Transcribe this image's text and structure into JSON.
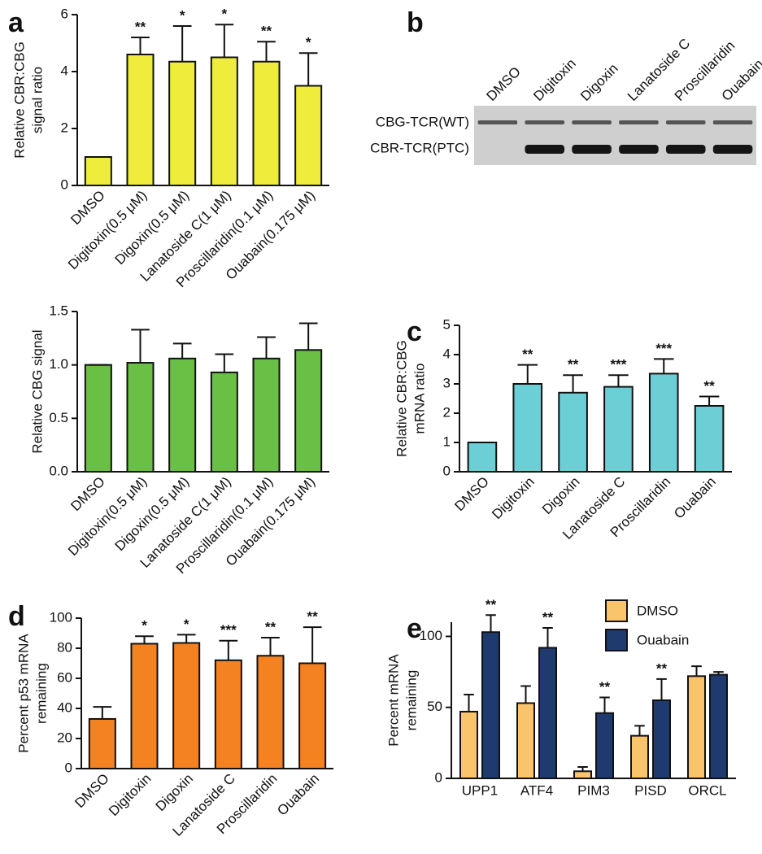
{
  "chart_data": [
    {
      "type": "bar",
      "panel": "a",
      "ylabel": [
        "Relative CBR:CBG",
        "signal ratio"
      ],
      "categories": [
        "DMSO",
        "Digitoxin(0.5 μM)",
        "Digoxin(0.5 μM)",
        "Lanatoside C(1 μM)",
        "Proscillaridin(0.1 μM)",
        "Ouabain(0.175 μM)"
      ],
      "values": [
        1,
        4.6,
        4.35,
        4.5,
        4.35,
        3.5
      ],
      "errors": [
        0,
        0.6,
        1.25,
        1.15,
        0.7,
        1.15
      ],
      "annotations": [
        null,
        "**",
        "*",
        "*",
        "**",
        "*"
      ],
      "color": "#f0ec3c",
      "ylim": [
        0,
        6
      ],
      "yticks": [
        0,
        2,
        4,
        6
      ]
    },
    {
      "type": "bar",
      "ylabel": [
        "Relative CBG signal"
      ],
      "categories": [
        "DMSO",
        "Digitoxin(0.5 μM)",
        "Digoxin(0.5 μM)",
        "Lanatoside C(1 μM)",
        "Proscillaridin(0.1 μM)",
        "Ouabain(0.175 μM)"
      ],
      "values": [
        1.0,
        1.02,
        1.06,
        0.93,
        1.06,
        1.14
      ],
      "errors": [
        0,
        0.31,
        0.14,
        0.17,
        0.2,
        0.25
      ],
      "color": "#6abf45",
      "ylim": [
        0,
        1.5
      ],
      "yticks": [
        {
          "value": 0,
          "label": "0.0"
        },
        {
          "value": 0.5,
          "label": "0.5"
        },
        {
          "value": 1,
          "label": "1.0"
        },
        {
          "value": 1.5,
          "label": "1.5"
        }
      ]
    },
    {
      "type": "bar",
      "panel": "c",
      "ylabel": [
        "Relative CBR:CBG",
        "mRNA ratio"
      ],
      "categories": [
        "DMSO",
        "Digitoxin",
        "Digoxin",
        "Lanatoside C",
        "Proscillaridin",
        "Ouabain"
      ],
      "values": [
        1,
        3.0,
        2.7,
        2.9,
        3.35,
        2.25
      ],
      "errors": [
        0,
        0.65,
        0.6,
        0.4,
        0.5,
        0.32
      ],
      "annotations": [
        null,
        "**",
        "**",
        "***",
        "***",
        "**"
      ],
      "color": "#6dcfd6",
      "ylim": [
        0,
        5
      ],
      "yticks": [
        0,
        1,
        2,
        3,
        4,
        5
      ]
    },
    {
      "type": "bar",
      "panel": "d",
      "ylabel": [
        "Percent p53 mRNA",
        "remaining"
      ],
      "categories": [
        "DMSO",
        "Digitoxin",
        "Digoxin",
        "Lanatoside C",
        "Proscillaridin",
        "Ouabain"
      ],
      "values": [
        33,
        83,
        83.5,
        72,
        75,
        70
      ],
      "errors": [
        8,
        5,
        5.5,
        13,
        12,
        24
      ],
      "annotations": [
        null,
        "*",
        "*",
        "***",
        "**",
        "**"
      ],
      "color": "#f58220",
      "ylim": [
        0,
        100
      ],
      "yticks": [
        0,
        20,
        40,
        60,
        80,
        100
      ]
    },
    {
      "type": "grouped-bar",
      "panel": "e",
      "ylabel": [
        "Percent mRNA",
        "remaining"
      ],
      "categories": [
        "UPP1",
        "ATF4",
        "PIM3",
        "PISD",
        "ORCL"
      ],
      "series": [
        {
          "name": "DMSO",
          "color": "#f9c46b",
          "values": [
            47,
            53,
            5,
            30,
            72
          ],
          "errors": [
            12,
            12,
            3,
            7,
            7
          ]
        },
        {
          "name": "Ouabain",
          "color": "#1f3a6e",
          "values": [
            103,
            92,
            46,
            55,
            73
          ],
          "errors": [
            12,
            14,
            11,
            15,
            2
          ],
          "annotations": [
            "**",
            "**",
            "**",
            "**",
            null
          ]
        }
      ],
      "ylim": [
        0,
        110
      ],
      "yticks": [
        0,
        50,
        100
      ],
      "legend": "top-right"
    }
  ],
  "blot": {
    "panel": "b",
    "lanes": [
      "DMSO",
      "Digitoxin",
      "Digoxin",
      "Lanatoside C",
      "Proscillaridin",
      "Ouabain"
    ],
    "bands": [
      "CBG-TCR(WT)",
      "CBR-TCR(PTC)"
    ]
  }
}
